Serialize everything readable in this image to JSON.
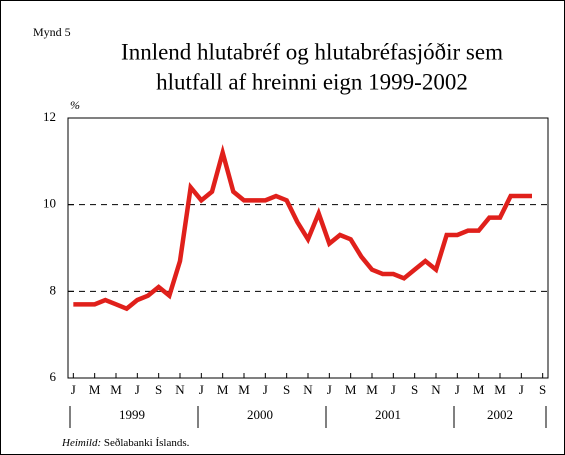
{
  "chart_data": {
    "type": "line",
    "figure_label": "Mynd 5",
    "title": [
      "Innlend hlutabréf og hlutabréfasjóðir sem",
      "hlutfall af hreinni eign 1999-2002"
    ],
    "y_label": "%",
    "categories": [
      "J",
      null,
      "M",
      null,
      "M",
      null,
      "J",
      null,
      "S",
      null,
      "N",
      null,
      "J",
      null,
      "M",
      null,
      "M",
      null,
      "J",
      null,
      "S",
      null,
      "N",
      null,
      "J",
      null,
      "M",
      null,
      "M",
      null,
      "J",
      null,
      "S",
      null,
      "N",
      null,
      "J",
      null,
      "M",
      null,
      "M",
      null,
      "J",
      null,
      "S"
    ],
    "years": [
      "1999",
      "2000",
      "2001",
      "2002"
    ],
    "series": [
      {
        "name": "Hlutfall",
        "color": "#e0201b",
        "values": [
          7.7,
          7.7,
          7.7,
          7.8,
          7.7,
          7.6,
          7.8,
          7.9,
          8.1,
          7.9,
          8.7,
          10.4,
          10.1,
          10.3,
          11.2,
          10.3,
          10.1,
          10.1,
          10.1,
          10.2,
          10.1,
          9.6,
          9.2,
          9.8,
          9.1,
          9.3,
          9.2,
          8.8,
          8.5,
          8.4,
          8.4,
          8.3,
          8.5,
          8.7,
          8.5,
          9.3,
          9.3,
          9.4,
          9.4,
          9.7,
          9.7,
          10.2,
          10.2,
          10.2,
          null
        ]
      }
    ],
    "ylim": [
      6,
      12
    ],
    "yticks": [
      6,
      8,
      10,
      12
    ],
    "grid": true,
    "source_label": "Heimild:",
    "source": "Seðlabanki Íslands."
  }
}
